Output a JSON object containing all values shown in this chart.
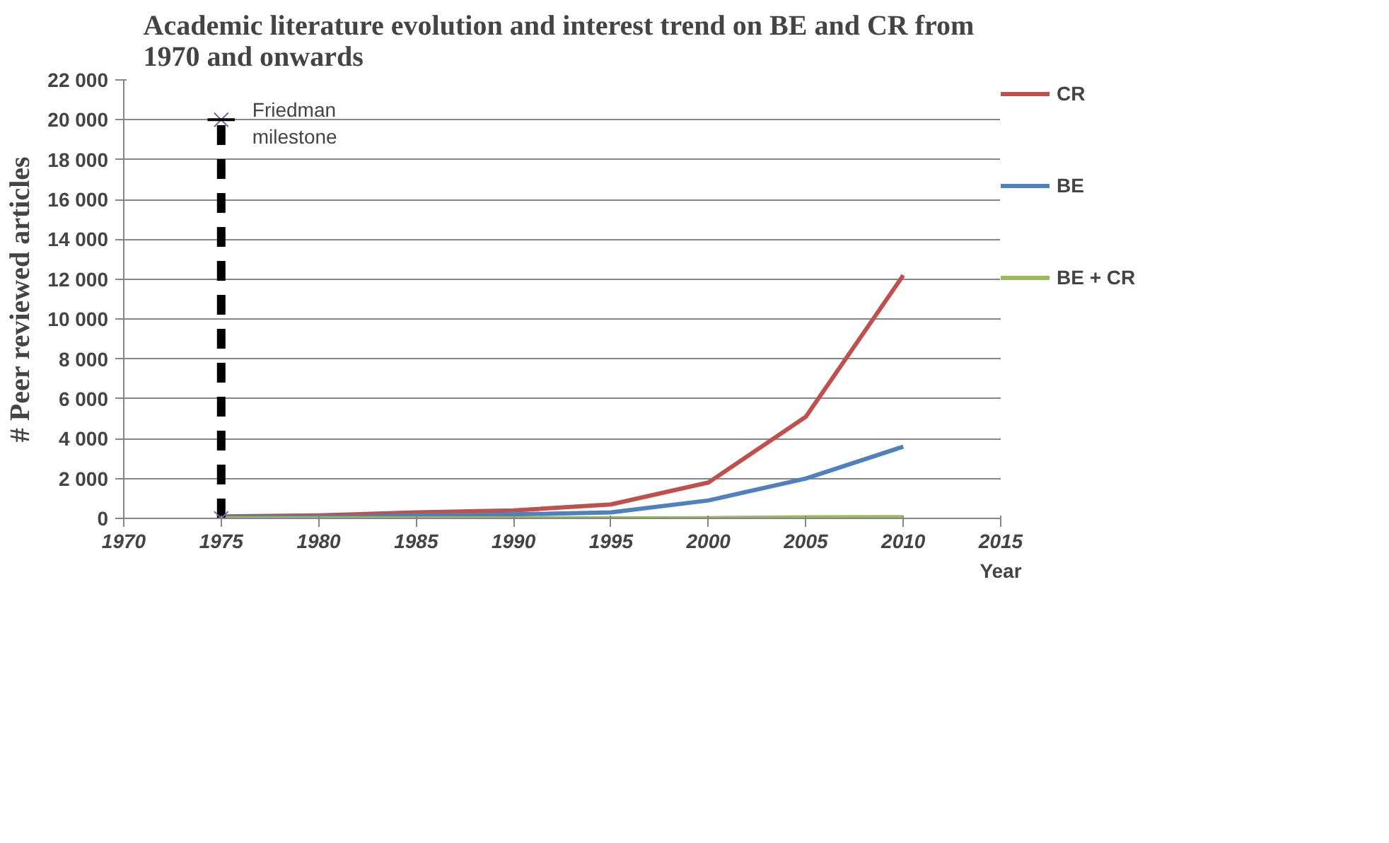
{
  "chart_data": {
    "type": "line",
    "title": "Academic literature evolution and interest trend  on BE and CR from 1970  and onwards",
    "xlabel": "Year",
    "ylabel": "# Peer reviewed articles",
    "x": [
      1975,
      1980,
      1985,
      1990,
      1995,
      2000,
      2005,
      2010
    ],
    "series": [
      {
        "name": "CR",
        "color": "#c0504d",
        "values": [
          100,
          150,
          300,
          400,
          700,
          1800,
          5100,
          12200
        ]
      },
      {
        "name": "BE",
        "color": "#4f81bd",
        "values": [
          50,
          80,
          150,
          200,
          300,
          900,
          2000,
          3600
        ]
      },
      {
        "name": "BE + CR",
        "color": "#9bbb59",
        "values": [
          0,
          0,
          0,
          0,
          0,
          10,
          50,
          60
        ]
      },
      {
        "color": "#000000",
        "x": [
          1975,
          1975
        ],
        "values": [
          0,
          20000
        ],
        "line_style": "dashed",
        "marker": "cross",
        "xerrors": [
          null,
          0.7
        ]
      }
    ],
    "annotations": [
      {
        "text": "Friedman milestone",
        "x": 1975,
        "y": 20000
      }
    ],
    "xlim": [
      1970,
      2015
    ],
    "xticks": [
      1970,
      1975,
      1980,
      1985,
      1990,
      1995,
      2000,
      2005,
      2010,
      2015
    ],
    "ylim": [
      0,
      22000
    ],
    "yticks": [
      0,
      {
        "value": 2000,
        "label": "2 000"
      },
      {
        "value": 4000,
        "label": "4 000"
      },
      {
        "value": 6000,
        "label": "6 000"
      },
      {
        "value": 8000,
        "label": "8 000"
      },
      {
        "value": 10000,
        "label": "10 000"
      },
      {
        "value": 12000,
        "label": "12 000"
      },
      {
        "value": 14000,
        "label": "14 000"
      },
      {
        "value": 16000,
        "label": "16 000"
      },
      {
        "value": 18000,
        "label": "18 000"
      },
      {
        "value": 20000,
        "label": "20 000"
      },
      {
        "value": 22000,
        "label": "22 000"
      }
    ],
    "grid": "y",
    "legend": "right"
  }
}
